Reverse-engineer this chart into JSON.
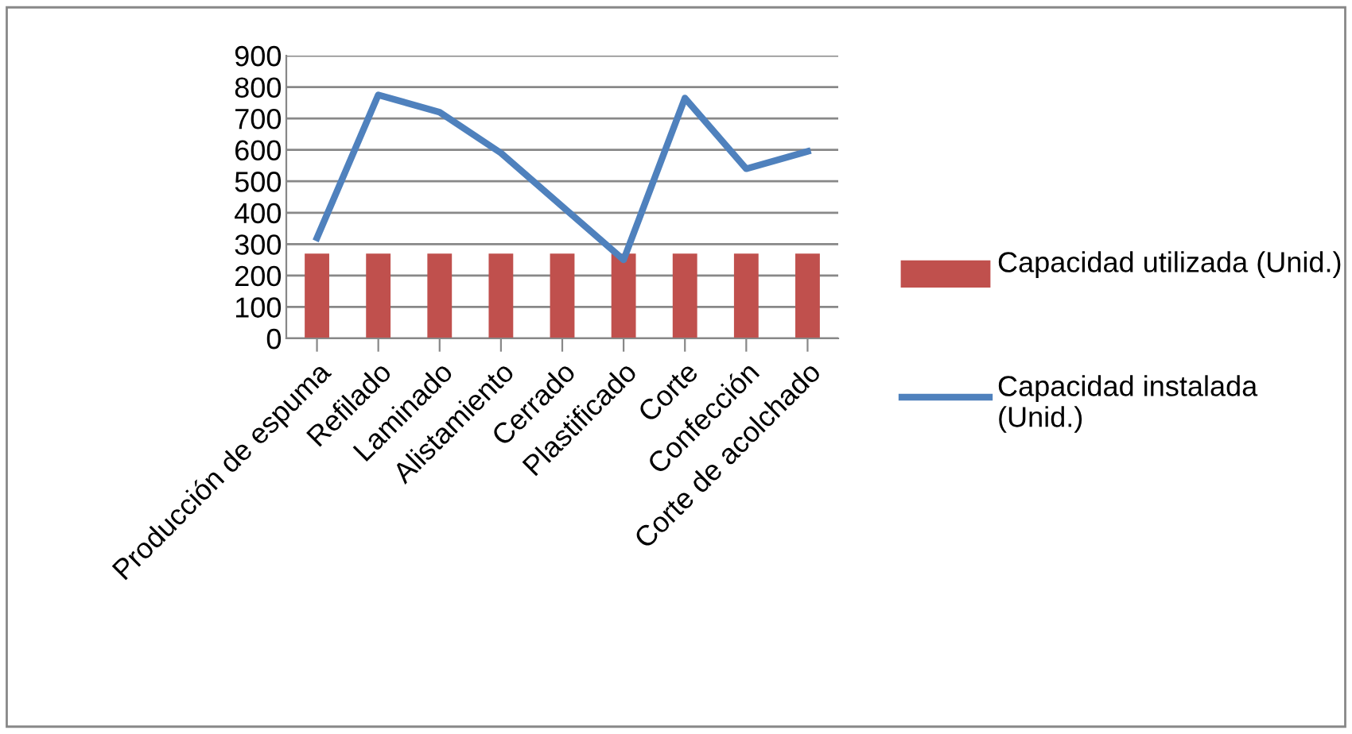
{
  "chart_data": {
    "type": "bar",
    "categories": [
      "Producción de espuma",
      "Refilado",
      "Laminado",
      "Alistamiento",
      "Cerrado",
      "Plastificado",
      "Corte",
      "Confección",
      "Corte de acolchado"
    ],
    "series": [
      {
        "name": "Capacidad utilizada (Unid.)",
        "type": "bar",
        "color": "#c0504d",
        "values": [
          270,
          270,
          270,
          270,
          270,
          270,
          270,
          270,
          270
        ]
      },
      {
        "name": "Capacidad instalada (Unid.)",
        "type": "line",
        "color": "#4f81bd",
        "values": [
          320,
          775,
          720,
          590,
          420,
          250,
          765,
          540,
          595
        ]
      }
    ],
    "ylim": [
      0,
      900
    ],
    "yticks": [
      0,
      100,
      200,
      300,
      400,
      500,
      600,
      700,
      800,
      900
    ],
    "grid": "y",
    "legend": "right",
    "marker": "none",
    "line_style": "solid"
  }
}
